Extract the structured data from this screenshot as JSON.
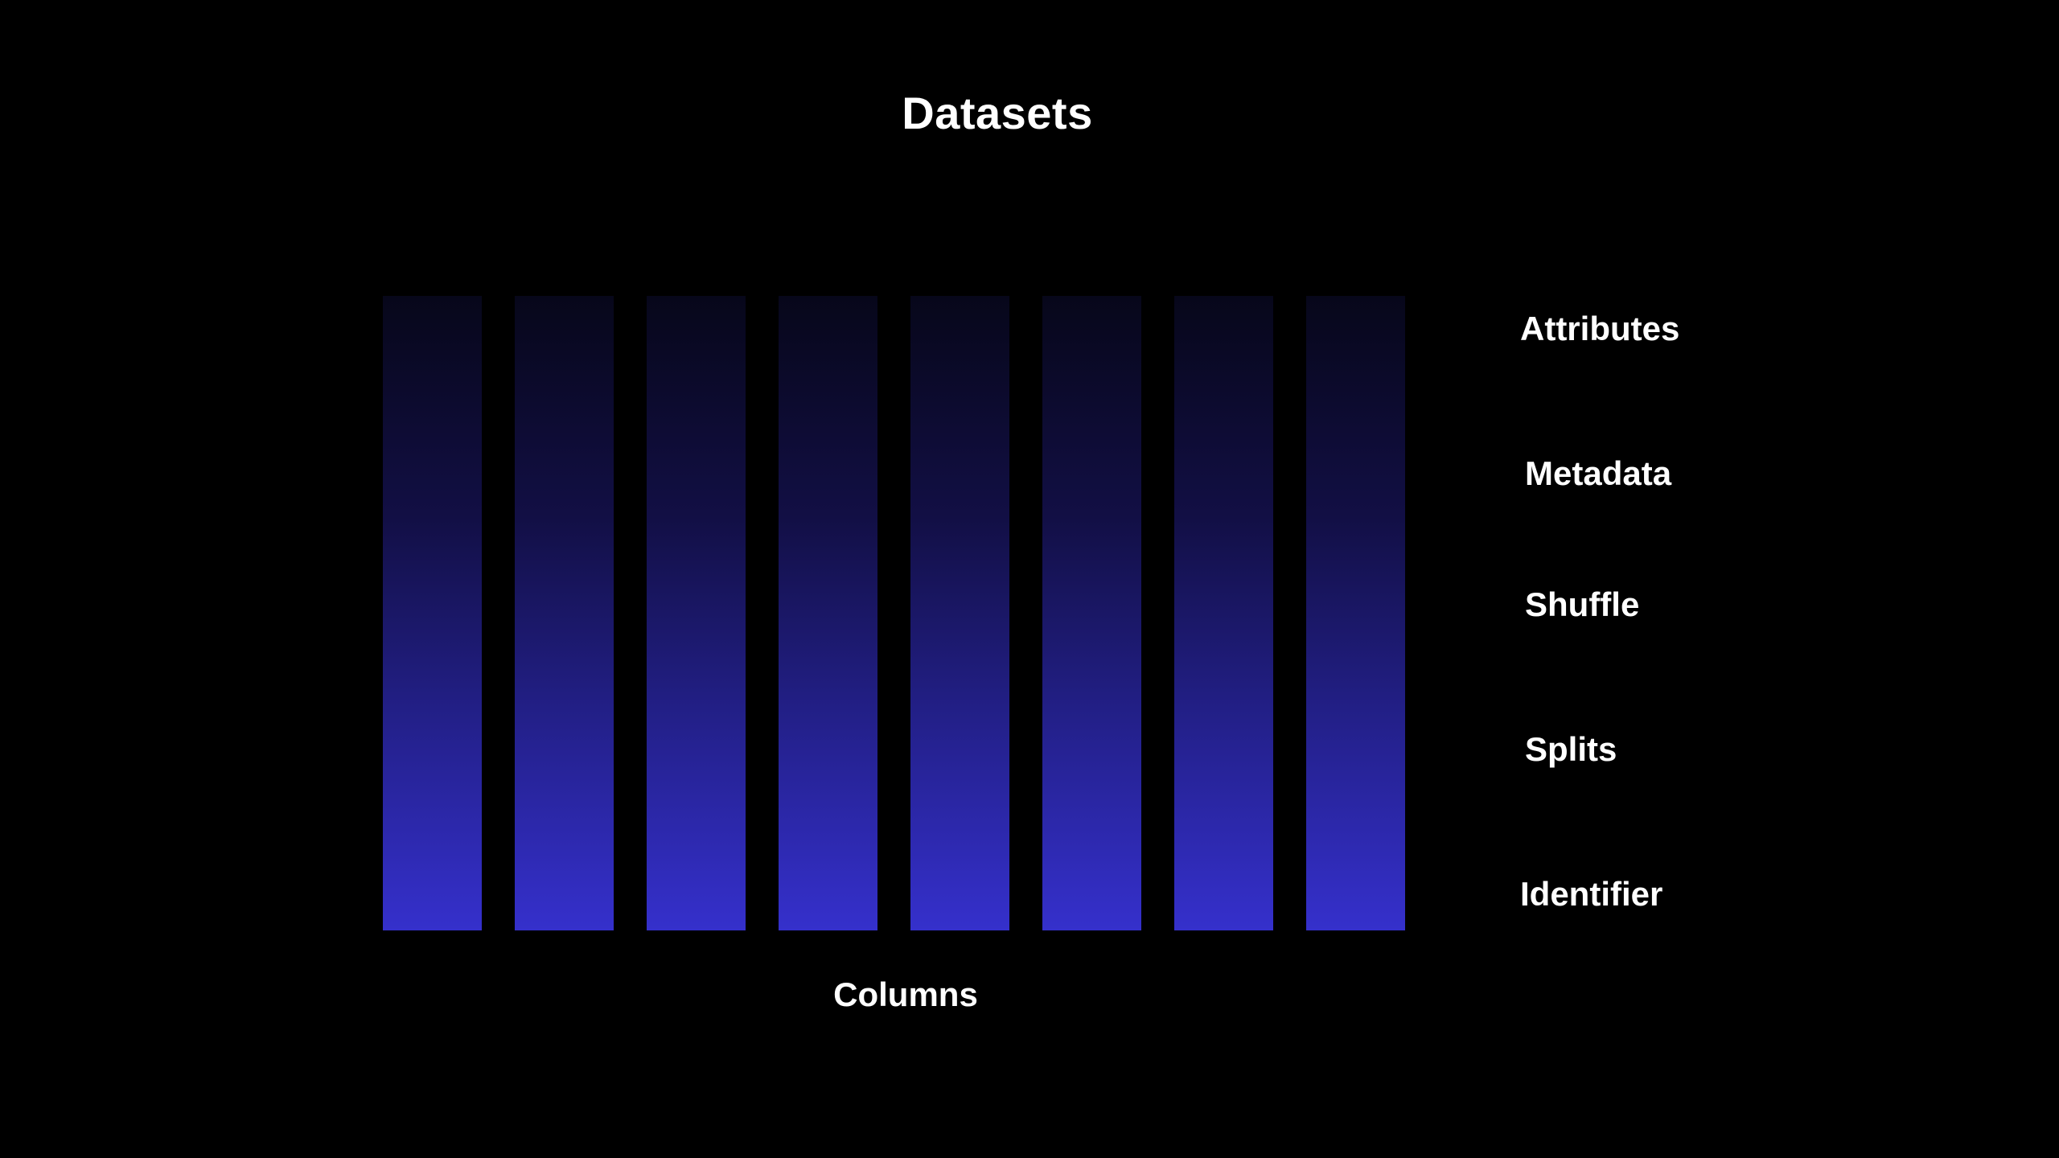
{
  "title": "Datasets",
  "columns": {
    "count": 8,
    "label": "Columns",
    "gradient_top": "#07071a",
    "gradient_bottom": "#3530cc"
  },
  "layers": [
    "Attributes",
    "Metadata",
    "Shuffle",
    "Splits",
    "Identifier"
  ],
  "colors": {
    "background": "#000000",
    "text": "#ffffff"
  }
}
